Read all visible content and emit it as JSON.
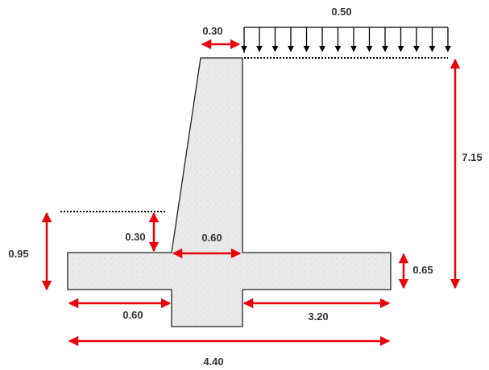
{
  "colors": {
    "wall_fill": "#eaeaea",
    "wall_outline": "#222222",
    "dimension_arrow": "#e8000b",
    "load_arrow": "#000000",
    "label_text": "#333333"
  },
  "labels": {
    "surcharge": "0.50",
    "wall_top": "0.30",
    "wall_height": "7.15",
    "front_fill_depth": "0.30",
    "total_front_height": "0.95",
    "stem_base": "0.60",
    "toe_length": "0.60",
    "heel_length": "3.20",
    "base_thickness": "0.65",
    "total_base": "4.40"
  }
}
